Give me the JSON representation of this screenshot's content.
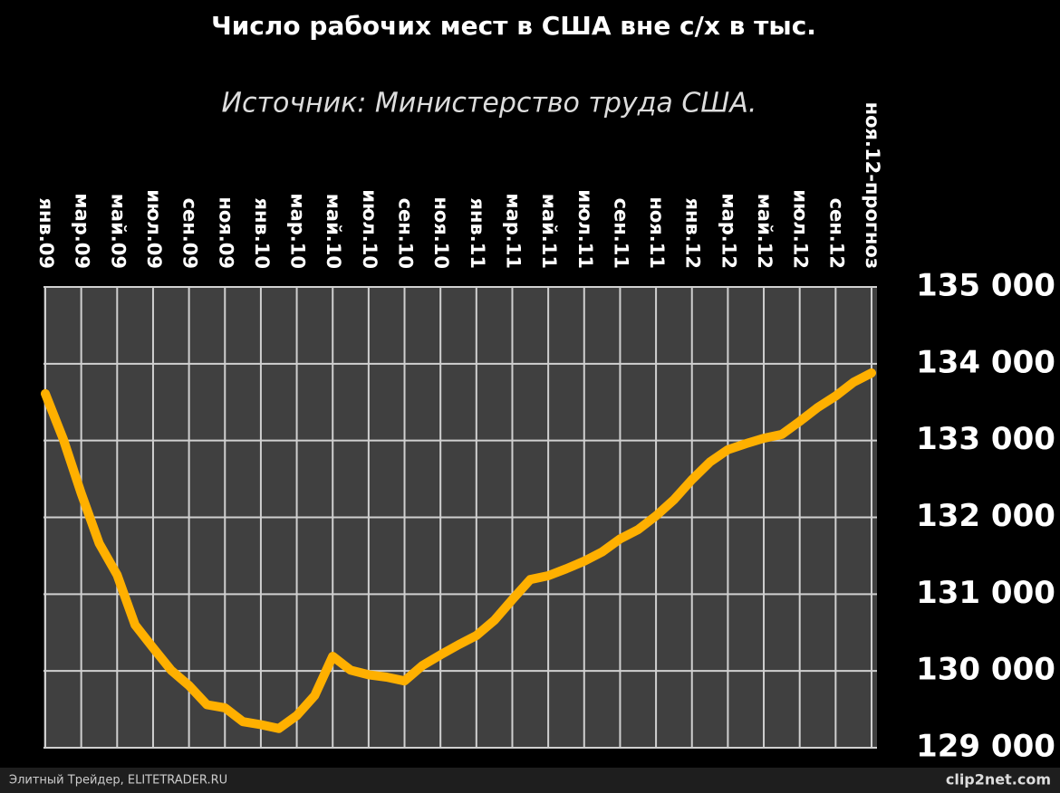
{
  "chart_data": {
    "type": "line",
    "title": "Число рабочих мест в США вне с/х в тыс.",
    "subtitle": "Источник: Министерство труда США.",
    "footer": "Элитный Трейдер, ELITETRADER.RU",
    "watermark": "clip2net.com",
    "categories": [
      "янв.09",
      null,
      "мар.09",
      null,
      "май.09",
      null,
      "июл.09",
      null,
      "сен.09",
      null,
      "ноя.09",
      null,
      "янв.10",
      null,
      "мар.10",
      null,
      "май.10",
      null,
      "июл.10",
      null,
      "сен.10",
      null,
      "ноя.10",
      null,
      "янв.11",
      null,
      "мар.11",
      null,
      "май.11",
      null,
      "июл.11",
      null,
      "сен.11",
      null,
      "ноя.11",
      null,
      "янв.12",
      null,
      "мар.12",
      null,
      "май.12",
      null,
      "июл.12",
      null,
      "сен.12",
      null,
      "ноя.12-прогноз"
    ],
    "values": [
      133610,
      133020,
      132310,
      131660,
      131250,
      130600,
      130300,
      130010,
      129810,
      129560,
      129520,
      129340,
      129300,
      129250,
      129420,
      129680,
      130190,
      130010,
      129950,
      129920,
      129870,
      130070,
      130210,
      130340,
      130460,
      130660,
      130930,
      131190,
      131240,
      131330,
      131430,
      131550,
      131720,
      131840,
      132020,
      132230,
      132490,
      132720,
      132880,
      132960,
      133030,
      133080,
      133250,
      133430,
      133580,
      133760,
      133880
    ],
    "color": "#ffb000",
    "ylim": [
      129000,
      135000
    ],
    "yticks": [
      {
        "value": 129000,
        "label": "129 000"
      },
      {
        "value": 130000,
        "label": "130 000"
      },
      {
        "value": 131000,
        "label": "131 000"
      },
      {
        "value": 132000,
        "label": "132 000"
      },
      {
        "value": 133000,
        "label": "133 000"
      },
      {
        "value": 134000,
        "label": "134 000"
      },
      {
        "value": 135000,
        "label": "135 000"
      }
    ],
    "grid": true
  }
}
